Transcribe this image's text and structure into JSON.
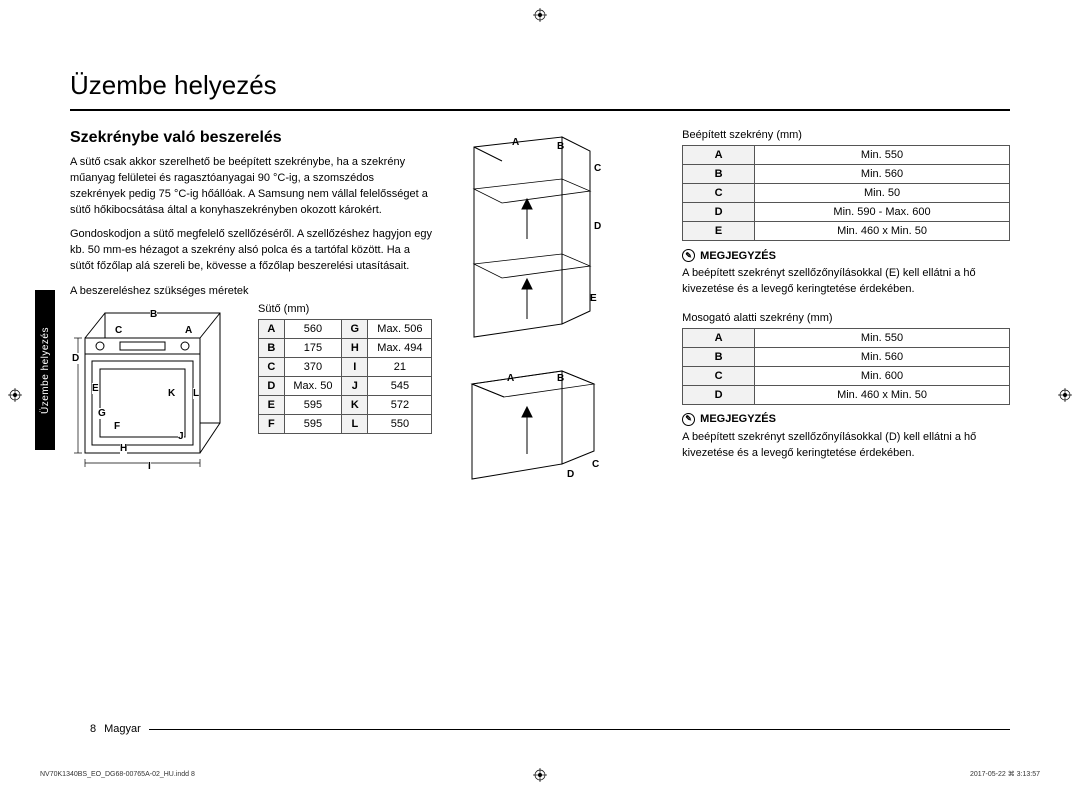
{
  "page": {
    "title": "Üzembe helyezés",
    "side_tab": "Üzembe helyezés",
    "section_heading": "Szekrénybe való beszerelés",
    "para1": "A sütő csak akkor szerelhető be beépített szekrénybe, ha a szekrény műanyag felületei és ragasztóanyagai 90 °C-ig, a szomszédos szekrények pedig 75 °C-ig hőállóak. A Samsung nem vállal felelősséget a sütő hőkibocsátása által a konyhaszekrényben okozott károkért.",
    "para2": "Gondoskodjon a sütő megfelelő szellőzéséről. A szellőzéshez hagyjon egy kb. 50 mm-es hézagot a szekrény alsó polca és a tartófal között. Ha a sütőt főzőlap alá szereli be, kövesse a főzőlap beszerelési utasításait.",
    "req_dims_label": "A beszereléshez szükséges méretek",
    "oven_caption": "Sütő (mm)",
    "oven_table": {
      "rows": [
        [
          "A",
          "560",
          "G",
          "Max. 506"
        ],
        [
          "B",
          "175",
          "H",
          "Max. 494"
        ],
        [
          "C",
          "370",
          "I",
          "21"
        ],
        [
          "D",
          "Max. 50",
          "J",
          "545"
        ],
        [
          "E",
          "595",
          "K",
          "572"
        ],
        [
          "F",
          "595",
          "L",
          "550"
        ]
      ]
    },
    "oven_labels": [
      "A",
      "B",
      "C",
      "D",
      "E",
      "F",
      "G",
      "H",
      "I",
      "J",
      "K",
      "L"
    ],
    "builtin_caption": "Beépített szekrény (mm)",
    "builtin_table": {
      "rows": [
        [
          "A",
          "Min. 550"
        ],
        [
          "B",
          "Min. 560"
        ],
        [
          "C",
          "Min. 50"
        ],
        [
          "D",
          "Min. 590 - Max. 600"
        ],
        [
          "E",
          "Min. 460 x Min. 50"
        ]
      ]
    },
    "builtin_labels": [
      "A",
      "B",
      "C",
      "D",
      "E"
    ],
    "note_label": "MEGJEGYZÉS",
    "note1_text": "A beépített szekrényt szellőzőnyílásokkal (E) kell ellátni a hő kivezetése és a levegő keringtetése érdekében.",
    "undersink_caption": "Mosogató alatti szekrény (mm)",
    "undersink_table": {
      "rows": [
        [
          "A",
          "Min. 550"
        ],
        [
          "B",
          "Min. 560"
        ],
        [
          "C",
          "Min. 600"
        ],
        [
          "D",
          "Min. 460 x Min. 50"
        ]
      ]
    },
    "undersink_labels": [
      "A",
      "B",
      "C",
      "D"
    ],
    "note2_text": "A beépített szekrényt szellőzőnyílásokkal (D) kell ellátni a hő kivezetése és a levegő keringtetése érdekében.",
    "footer_page": "8",
    "footer_lang": "Magyar",
    "print_file": "NV70K1340BS_EO_DG68-00765A-02_HU.indd   8",
    "print_time": "2017-05-22   ⌘ 3:13:57"
  },
  "style": {
    "text_color": "#000000",
    "bg_color": "#ffffff",
    "table_header_bg": "#f2f2f2",
    "border_color": "#555555"
  }
}
